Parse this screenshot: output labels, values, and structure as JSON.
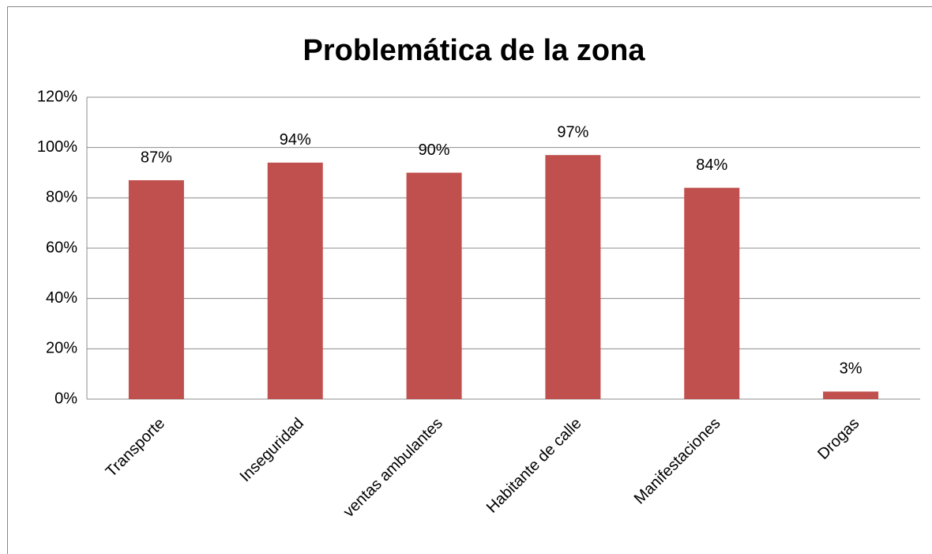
{
  "chart_data": {
    "type": "bar",
    "title": "Problemática de la zona",
    "categories": [
      "Transporte",
      "Inseguridad",
      "ventas ambulantes",
      "Habitante de calle",
      "Manifestaciones",
      "Drogas"
    ],
    "values": [
      87,
      94,
      90,
      97,
      84,
      3
    ],
    "value_labels": [
      "87%",
      "94%",
      "90%",
      "97%",
      "84%",
      "3%"
    ],
    "color": "#c0504d",
    "ylim": [
      0,
      120
    ],
    "yticks": [
      {
        "value": 0,
        "label": "0%"
      },
      {
        "value": 20,
        "label": "20%"
      },
      {
        "value": 40,
        "label": "40%"
      },
      {
        "value": 60,
        "label": "60%"
      },
      {
        "value": 80,
        "label": "80%"
      },
      {
        "value": 100,
        "label": "100%"
      },
      {
        "value": 120,
        "label": "120%"
      }
    ],
    "grid": true
  }
}
